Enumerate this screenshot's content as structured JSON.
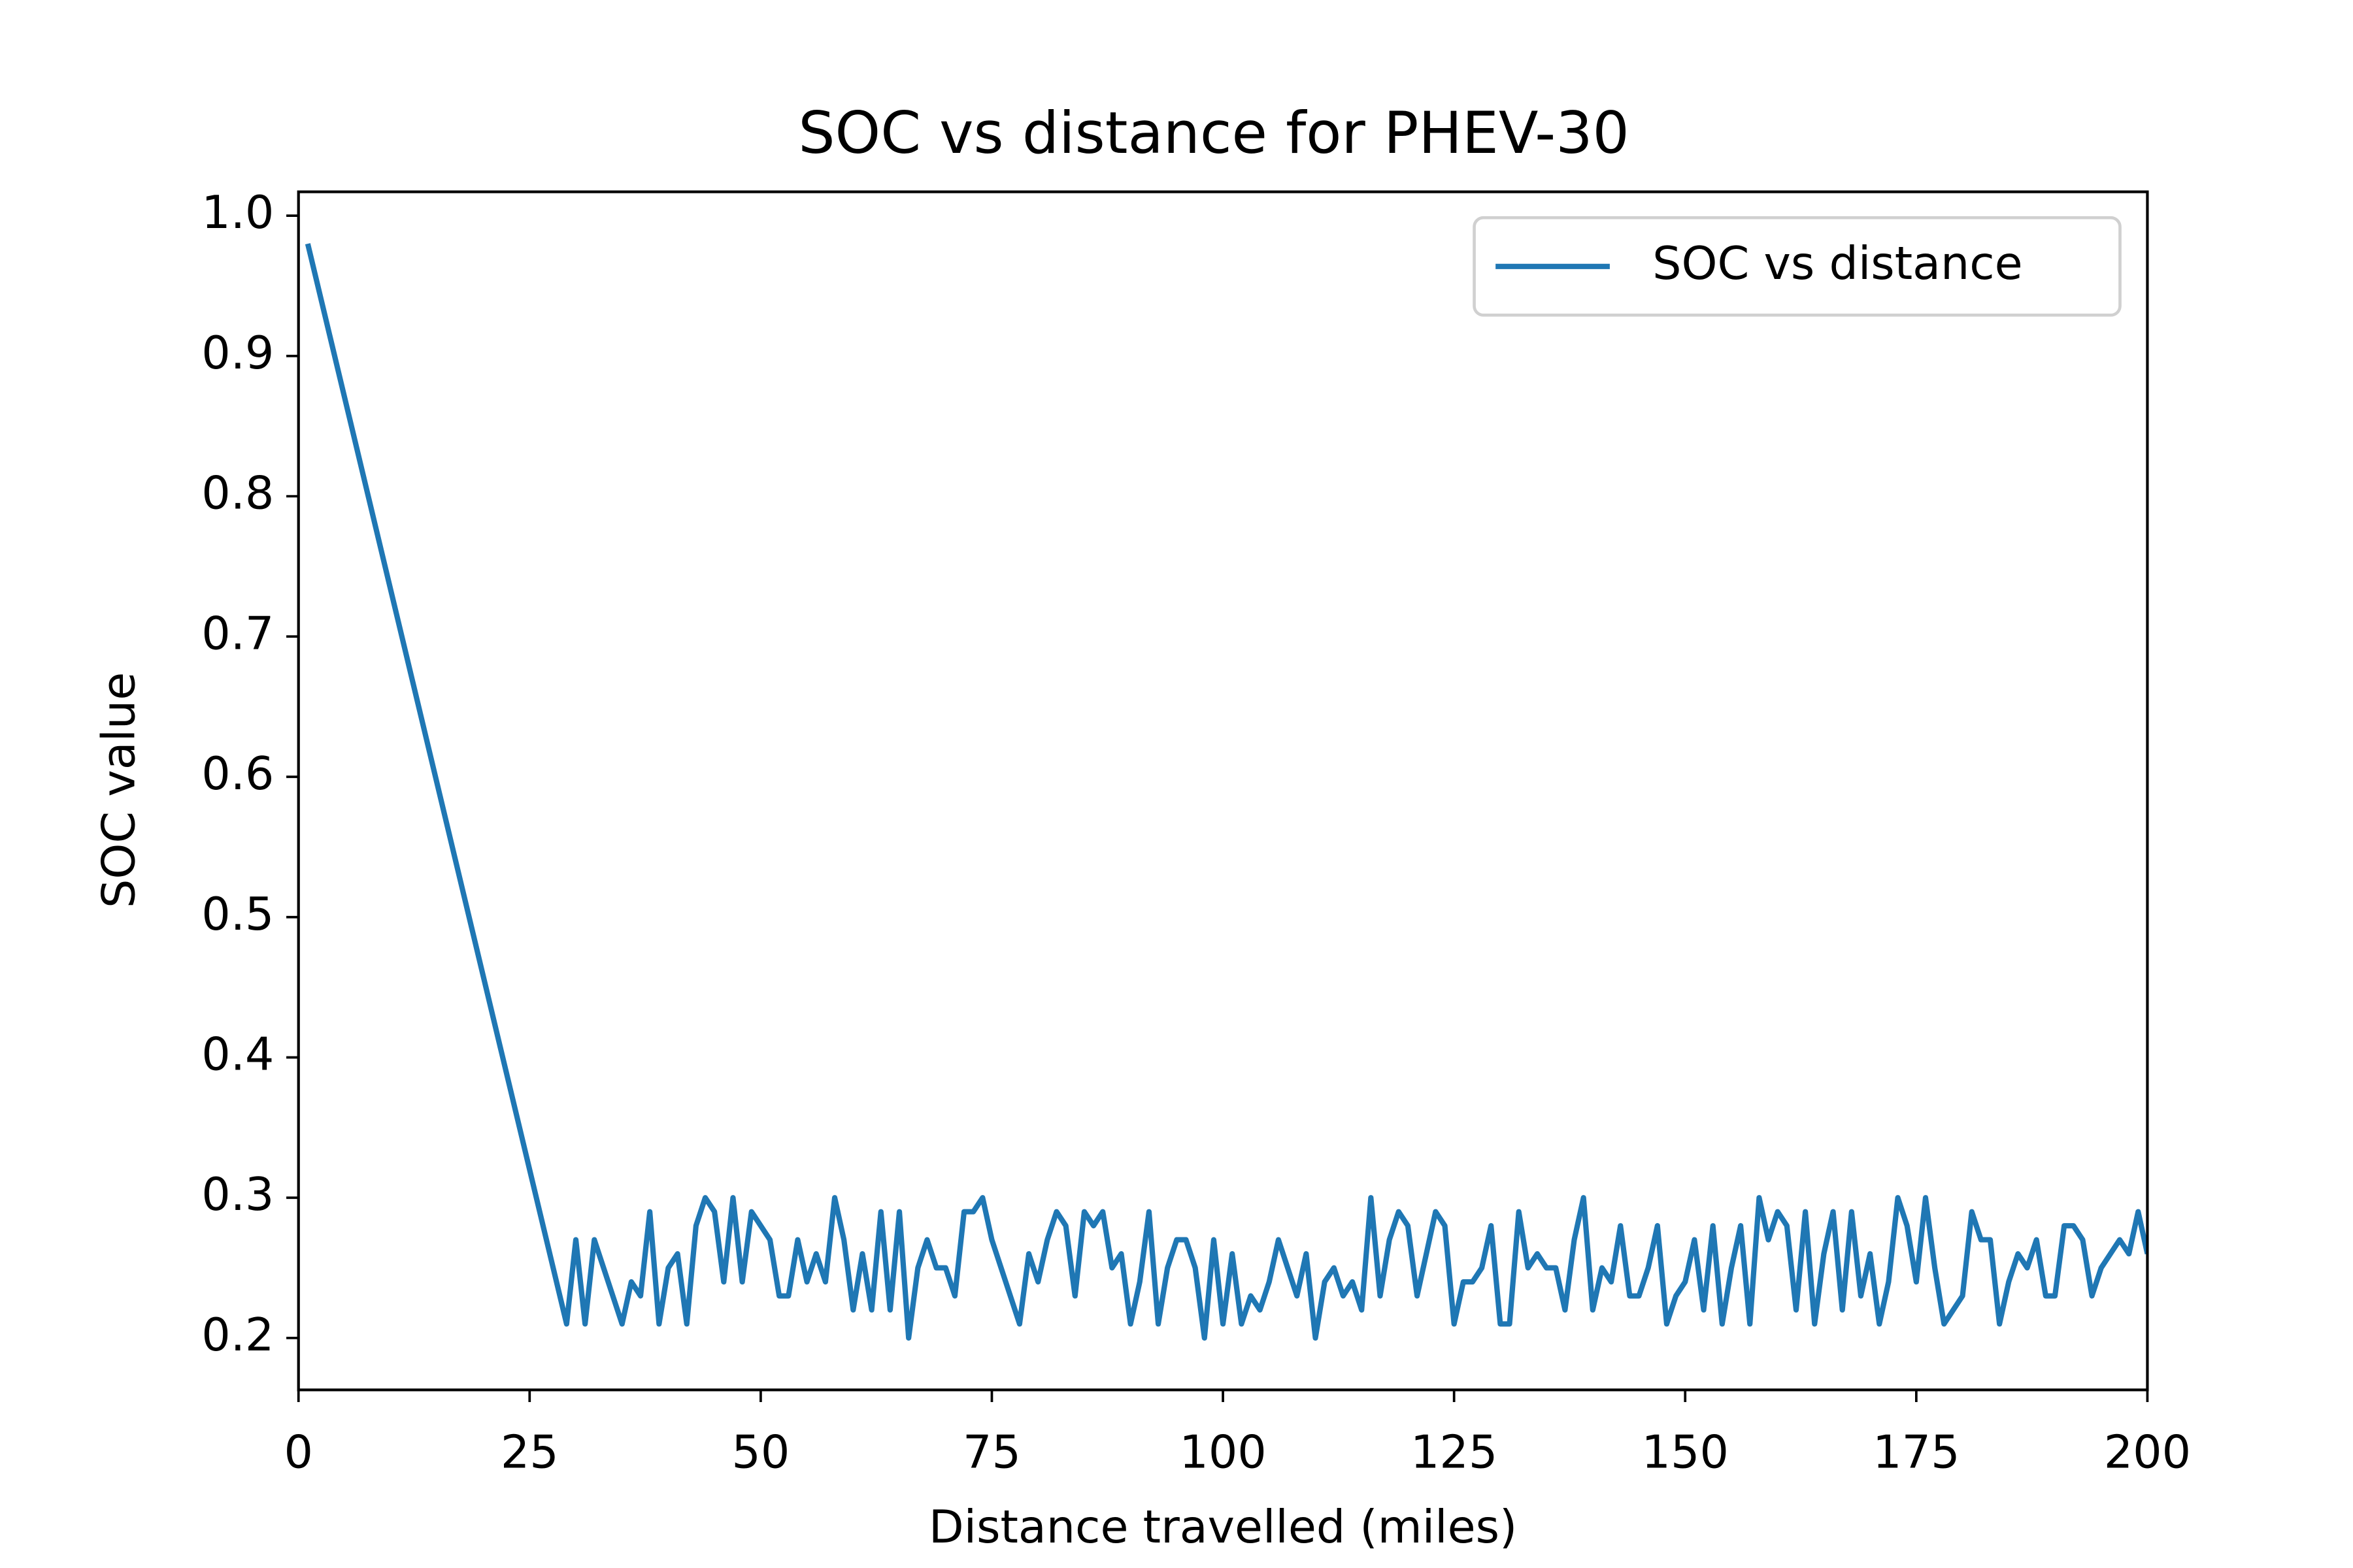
{
  "chart_data": {
    "type": "line",
    "title": "SOC vs distance for PHEV-30",
    "xlabel": "Distance travelled (miles)",
    "ylabel": "SOC value",
    "x": [
      1,
      29,
      30,
      31,
      32,
      33,
      34,
      35,
      36,
      37,
      38,
      39,
      40,
      41,
      42,
      43,
      44,
      45,
      46,
      47,
      48,
      49,
      50,
      51,
      52,
      53,
      54,
      55,
      56,
      57,
      58,
      59,
      60,
      61,
      62,
      63,
      64,
      65,
      66,
      67,
      68,
      69,
      70,
      71,
      72,
      73,
      74,
      75,
      76,
      77,
      78,
      79,
      80,
      81,
      82,
      83,
      84,
      85,
      86,
      87,
      88,
      89,
      90,
      91,
      92,
      93,
      94,
      95,
      96,
      97,
      98,
      99,
      100,
      101,
      102,
      103,
      104,
      105,
      106,
      107,
      108,
      109,
      110,
      111,
      112,
      113,
      114,
      115,
      116,
      117,
      118,
      119,
      120,
      121,
      122,
      123,
      124,
      125,
      126,
      127,
      128,
      129,
      130,
      131,
      132,
      133,
      134,
      135,
      136,
      137,
      138,
      139,
      140,
      141,
      142,
      143,
      144,
      145,
      146,
      147,
      148,
      149,
      150,
      151,
      152,
      153,
      154,
      155,
      156,
      157,
      158,
      159,
      160,
      161,
      162,
      163,
      164,
      165,
      166,
      167,
      168,
      169,
      170,
      171,
      172,
      173,
      174,
      175,
      176,
      177,
      178,
      179,
      180,
      181,
      182,
      183,
      184,
      185,
      186,
      187,
      188,
      189,
      190,
      191,
      192,
      193,
      194,
      195,
      196,
      197,
      198,
      199,
      200
    ],
    "series": [
      {
        "name": "SOC vs distance",
        "color": "#1f77b4",
        "values": [
          0.98,
          0.21,
          0.27,
          0.21,
          0.27,
          0.25,
          0.23,
          0.21,
          0.24,
          0.23,
          0.29,
          0.21,
          0.25,
          0.26,
          0.21,
          0.28,
          0.3,
          0.29,
          0.24,
          0.3,
          0.24,
          0.29,
          0.28,
          0.27,
          0.23,
          0.23,
          0.27,
          0.24,
          0.26,
          0.24,
          0.3,
          0.27,
          0.22,
          0.26,
          0.22,
          0.29,
          0.22,
          0.29,
          0.2,
          0.25,
          0.27,
          0.25,
          0.25,
          0.23,
          0.29,
          0.29,
          0.3,
          0.27,
          0.25,
          0.23,
          0.21,
          0.26,
          0.24,
          0.27,
          0.29,
          0.28,
          0.23,
          0.29,
          0.28,
          0.29,
          0.25,
          0.26,
          0.21,
          0.24,
          0.29,
          0.21,
          0.25,
          0.27,
          0.27,
          0.25,
          0.2,
          0.27,
          0.21,
          0.26,
          0.21,
          0.23,
          0.22,
          0.24,
          0.27,
          0.25,
          0.23,
          0.26,
          0.2,
          0.24,
          0.25,
          0.23,
          0.24,
          0.22,
          0.3,
          0.23,
          0.27,
          0.29,
          0.28,
          0.23,
          0.26,
          0.29,
          0.28,
          0.21,
          0.24,
          0.24,
          0.25,
          0.28,
          0.21,
          0.21,
          0.29,
          0.25,
          0.26,
          0.25,
          0.25,
          0.22,
          0.27,
          0.3,
          0.22,
          0.25,
          0.24,
          0.28,
          0.23,
          0.23,
          0.25,
          0.28,
          0.21,
          0.23,
          0.24,
          0.27,
          0.22,
          0.28,
          0.21,
          0.25,
          0.28,
          0.21,
          0.3,
          0.27,
          0.29,
          0.28,
          0.22,
          0.29,
          0.21,
          0.26,
          0.29,
          0.22,
          0.29,
          0.23,
          0.26,
          0.21,
          0.24,
          0.3,
          0.28,
          0.24,
          0.3,
          0.25,
          0.21,
          0.22,
          0.23,
          0.29,
          0.27,
          0.27,
          0.21,
          0.24,
          0.26,
          0.25,
          0.27,
          0.23,
          0.23,
          0.28,
          0.28,
          0.27,
          0.23,
          0.25,
          0.26,
          0.27,
          0.26,
          0.29,
          0.26
        ]
      }
    ],
    "xlim": [
      0,
      200
    ],
    "xticks": [
      0,
      25,
      50,
      75,
      100,
      125,
      150,
      175,
      200
    ],
    "ylim": [
      0.163,
      1.017
    ],
    "yticks": [
      0.2,
      0.3,
      0.4,
      0.5,
      0.6,
      0.7,
      0.8,
      0.9,
      {
        "value": 1,
        "label": "1.0"
      }
    ],
    "grid": false,
    "legend": "upper right"
  }
}
